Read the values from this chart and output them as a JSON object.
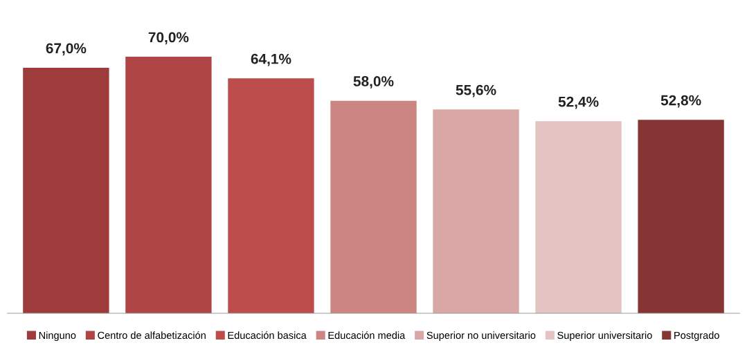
{
  "chart_data": {
    "type": "bar",
    "categories": [
      null
    ],
    "legend": "bottom",
    "series": [
      {
        "name": "Ninguno",
        "color": "#9e3b3b",
        "values": [
          67.0
        ],
        "value_labels": [
          "67,0%"
        ]
      },
      {
        "name": "Centro de alfabetización",
        "color": "#b04545",
        "values": [
          70.0
        ],
        "value_labels": [
          "70,0%"
        ]
      },
      {
        "name": "Educación basica",
        "color": "#bd4d4d",
        "values": [
          64.1
        ],
        "value_labels": [
          "64,1%"
        ]
      },
      {
        "name": "Educación media",
        "color": "#cd8582",
        "values": [
          58.0
        ],
        "value_labels": [
          "58,0%"
        ]
      },
      {
        "name": "Superior no universitario",
        "color": "#d9a7a6",
        "values": [
          55.6
        ],
        "value_labels": [
          "55,6%"
        ]
      },
      {
        "name": "Superior universitario",
        "color": "#e4c3c3",
        "values": [
          52.4
        ],
        "value_labels": [
          "52,4%"
        ]
      },
      {
        "name": "Postgrado",
        "color": "#873534",
        "values": [
          52.8
        ],
        "value_labels": [
          "52,8%"
        ]
      }
    ]
  }
}
